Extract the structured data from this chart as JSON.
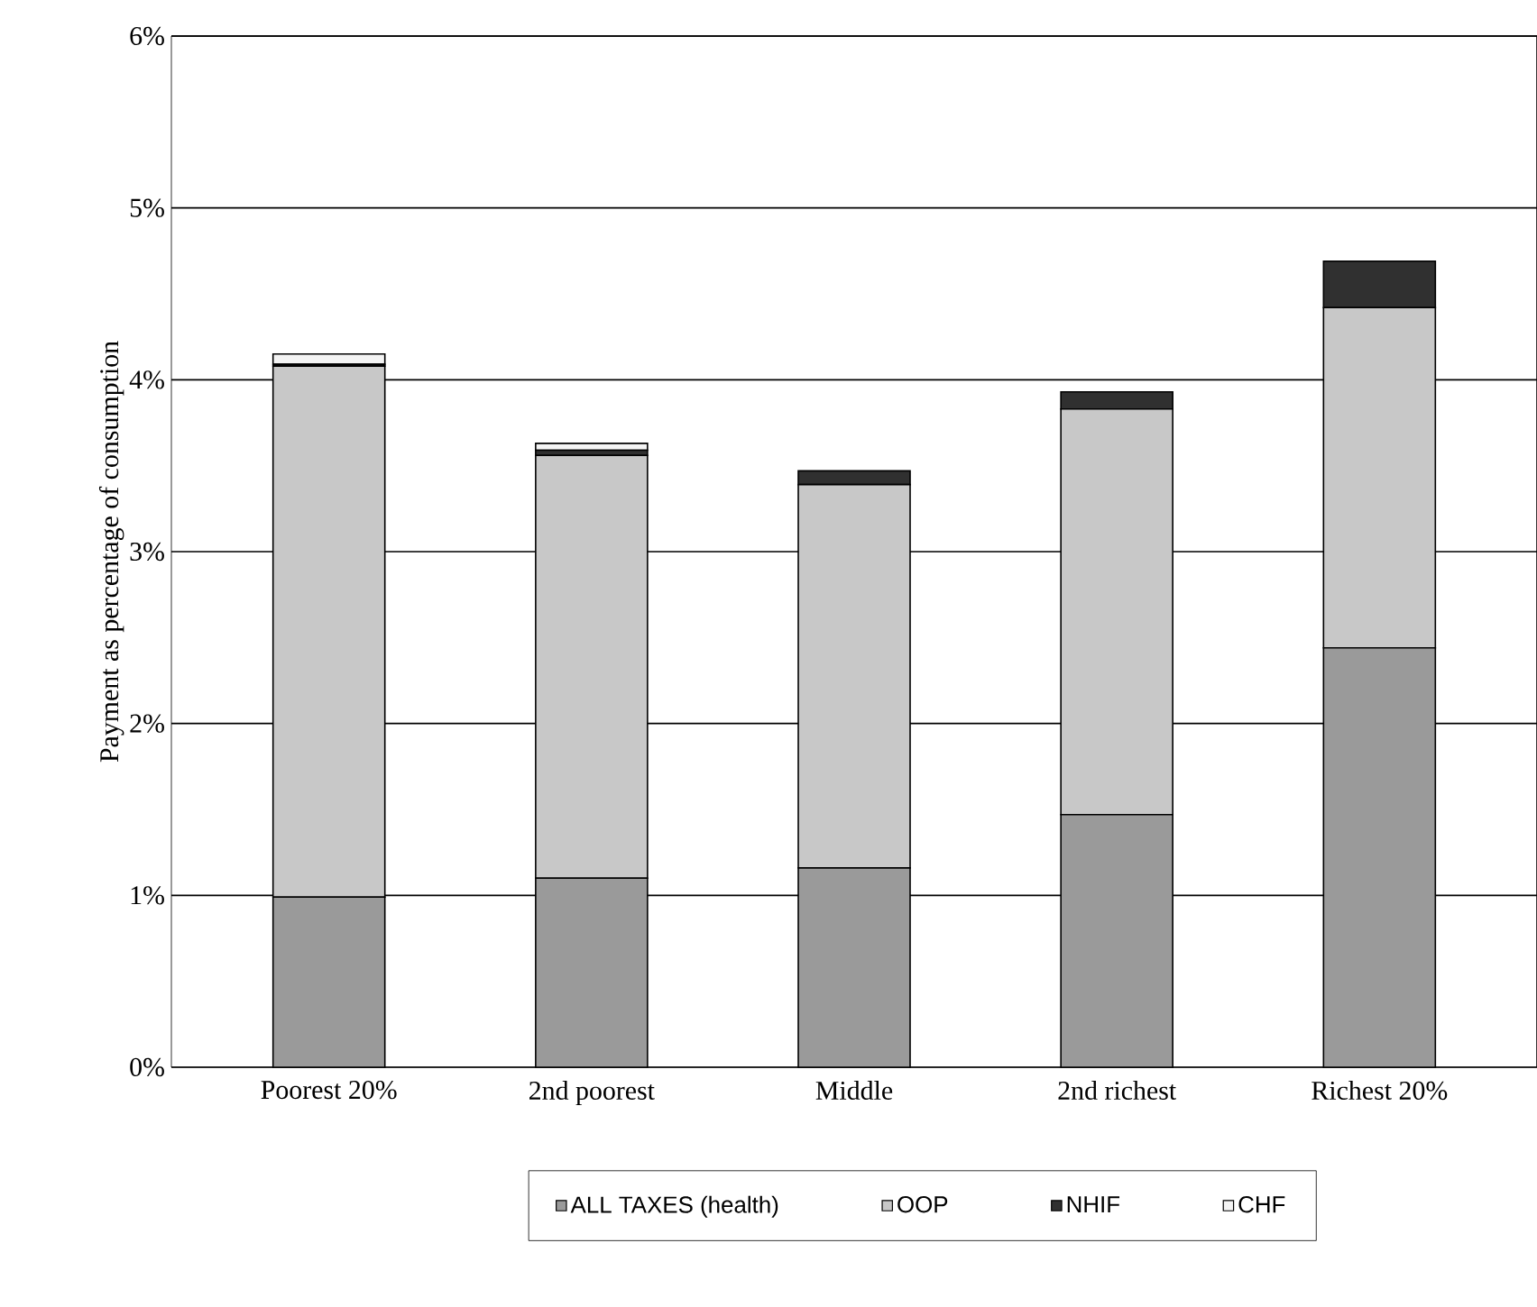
{
  "chart_data": {
    "type": "bar",
    "stacked": true,
    "ylabel": "Payment as percentage of consumption",
    "categories": [
      "Poorest 20%",
      "2nd poorest",
      "Middle",
      "2nd richest",
      "Richest 20%"
    ],
    "series": [
      {
        "name": "ALL TAXES (health)",
        "color": "#9a9a9a",
        "values": [
          0.99,
          1.1,
          1.16,
          1.47,
          2.44
        ]
      },
      {
        "name": "OOP",
        "color": "#c8c8c8",
        "values": [
          3.09,
          2.46,
          2.23,
          2.36,
          1.98
        ]
      },
      {
        "name": "NHIF",
        "color": "#303030",
        "values": [
          0.01,
          0.03,
          0.08,
          0.1,
          0.27
        ]
      },
      {
        "name": "CHF",
        "color": "#f4f4f4",
        "values": [
          0.06,
          0.04,
          0,
          0,
          0
        ]
      }
    ],
    "ylim": [
      0,
      6
    ],
    "yticks": [
      {
        "value": 0,
        "label": "0%"
      },
      {
        "value": 1,
        "label": "1%"
      },
      {
        "value": 2,
        "label": "2%"
      },
      {
        "value": 3,
        "label": "3%"
      },
      {
        "value": 4,
        "label": "4%"
      },
      {
        "value": 5,
        "label": "5%"
      },
      {
        "value": 6,
        "label": "6%"
      }
    ],
    "grid": "y",
    "legend": "bottom"
  }
}
